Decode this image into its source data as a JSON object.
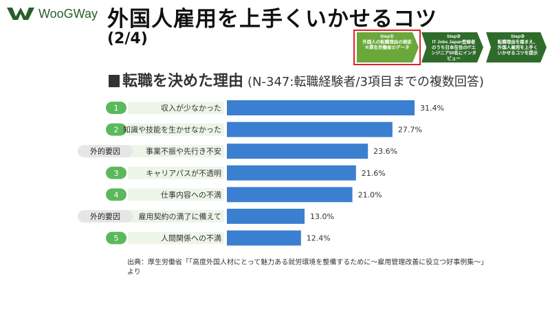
{
  "brand": {
    "name": "WooGWay",
    "logo_icon": "woogway-w-logo-icon",
    "color": "#2a5e2a"
  },
  "header": {
    "title": "外国人雇用を上手くいかせるコツ",
    "page": "(2/4)"
  },
  "steps": [
    {
      "name": "Step①",
      "text": "外国人の転職理由の検証 ※厚生労働省のデータ",
      "active": true
    },
    {
      "name": "Step②",
      "text": "IT Jobs Japan登録者のうち日本在住のITエンジニア50名にインタビュー",
      "active": false
    },
    {
      "name": "Step③",
      "text": "転職理由を踏まえ、外国人雇用を上手くいかせるコツを提示",
      "active": false
    }
  ],
  "chart_title": {
    "main": "転職を決めた理由",
    "sub": "(N-347:転職経験者/3項目までの複数回答)"
  },
  "chart_data": {
    "type": "bar",
    "orientation": "horizontal",
    "categories": [
      "収入が少なかった",
      "知識や技能を生かせなかった",
      "事業不振や先行き不安",
      "キャリアパスが不透明",
      "仕事内容への不満",
      "雇用契約の満了に備えて",
      "人間関係への不満"
    ],
    "markers": [
      "1",
      "2",
      "外的要因",
      "3",
      "4",
      "外的要因",
      "5"
    ],
    "values": [
      31.4,
      27.7,
      23.6,
      21.6,
      21.0,
      13.0,
      12.4
    ],
    "value_labels": [
      "31.4%",
      "27.7%",
      "23.6%",
      "21.6%",
      "21.0%",
      "13.0%",
      "12.4%"
    ],
    "unit": "%",
    "xlim": [
      0,
      35
    ],
    "bar_color": "#3b7fd0",
    "marker_color": "#5cb85c",
    "external_marker_color": "#e6e6e6"
  },
  "source": "出典：厚生労働省「「高度外国人材にとって魅力ある就労環境を整備するために～雇用管理改善に役立つ好事例集～」より"
}
